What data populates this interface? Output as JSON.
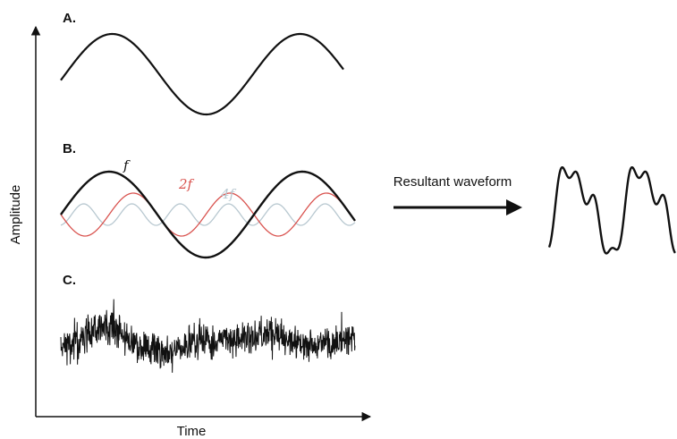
{
  "panels": {
    "a_label": "A.",
    "b_label": "B.",
    "c_label": "C."
  },
  "axes": {
    "x_label": "Time",
    "y_label": "Amplitude"
  },
  "panel_b": {
    "components": [
      {
        "label": "f",
        "color": "#111111"
      },
      {
        "label": "2f",
        "color": "#d9534f"
      },
      {
        "label": "4f",
        "color": "#b8c8d0"
      }
    ]
  },
  "arrow": {
    "label": "Resultant waveform"
  }
}
